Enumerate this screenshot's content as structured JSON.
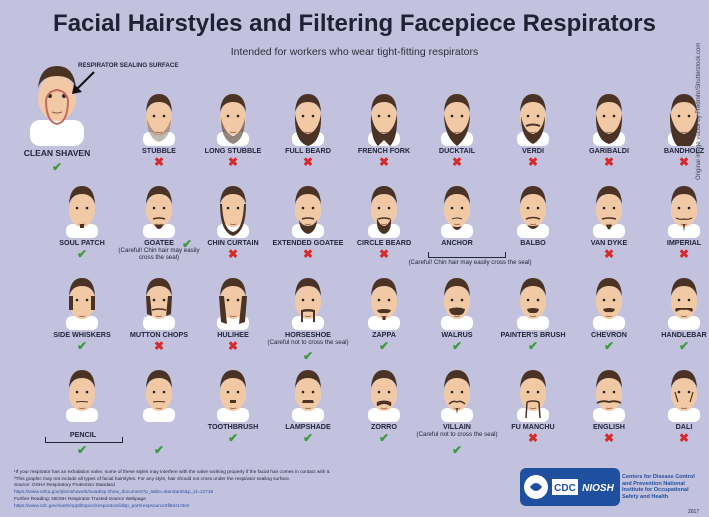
{
  "title": "Facial Hairstyles and Filtering Facepiece Respirators",
  "subtitle": "Intended for workers who wear tight-fitting respirators",
  "clean": {
    "label": "CLEAN SHAVEN",
    "sealing_label": "RESPIRATOR SEALING SURFACE",
    "ok": true
  },
  "styles": [
    {
      "id": "stubble",
      "label": "STUBBLE",
      "ok": false
    },
    {
      "id": "long-stubble",
      "label": "LONG STUBBLE",
      "ok": false
    },
    {
      "id": "full-beard",
      "label": "FULL BEARD",
      "ok": false
    },
    {
      "id": "french-fork",
      "label": "FRENCH FORK",
      "ok": false
    },
    {
      "id": "ducktail",
      "label": "DUCKTAIL",
      "ok": false
    },
    {
      "id": "verdi",
      "label": "VERDI",
      "ok": false
    },
    {
      "id": "garibaldi",
      "label": "GARIBALDI",
      "ok": false
    },
    {
      "id": "bandholz",
      "label": "BANDHOLZ",
      "ok": false
    },
    {
      "id": "soul-patch",
      "label": "SOUL PATCH",
      "ok": true
    },
    {
      "id": "goatee",
      "label": "GOATEE",
      "ok": true,
      "note": "(Careful! Chin hair may easily cross the seal)"
    },
    {
      "id": "chin-curtain",
      "label": "CHIN CURTAIN",
      "ok": false
    },
    {
      "id": "extended-goatee",
      "label": "EXTENDED GOATEE",
      "ok": false
    },
    {
      "id": "circle-beard",
      "label": "CIRCLE BEARD",
      "ok": false
    },
    {
      "id": "anchor",
      "label": "ANCHOR",
      "ok": null
    },
    {
      "id": "balbo",
      "label": "BALBO",
      "ok": null
    },
    {
      "id": "van-dyke",
      "label": "VAN DYKE",
      "ok": false
    },
    {
      "id": "imperial",
      "label": "IMPERIAL",
      "ok": false
    },
    {
      "id": "side-whiskers",
      "label": "SIDE WHISKERS",
      "ok": true
    },
    {
      "id": "mutton-chops",
      "label": "MUTTON CHOPS",
      "ok": false
    },
    {
      "id": "hulihee",
      "label": "HULIHEE",
      "ok": false
    },
    {
      "id": "horseshoe",
      "label": "HORSESHOE",
      "ok": null,
      "note": "(Careful not to cross the seal)"
    },
    {
      "id": "zappa",
      "label": "ZAPPA",
      "ok": true
    },
    {
      "id": "walrus",
      "label": "WALRUS",
      "ok": true
    },
    {
      "id": "painters-brush",
      "label": "PAINTER'S BRUSH",
      "ok": true
    },
    {
      "id": "chevron",
      "label": "CHEVRON",
      "ok": true
    },
    {
      "id": "handlebar",
      "label": "HANDLEBAR",
      "ok": true
    },
    {
      "id": "pencil-1",
      "label": "",
      "ok": true
    },
    {
      "id": "pencil-2",
      "label": "",
      "ok": true
    },
    {
      "id": "toothbrush",
      "label": "TOOTHBRUSH",
      "ok": true
    },
    {
      "id": "lampshade",
      "label": "LAMPSHADE",
      "ok": true
    },
    {
      "id": "zorro",
      "label": "ZORRO",
      "ok": true
    },
    {
      "id": "villain",
      "label": "VILLAIN",
      "ok": null,
      "note": "(Careful not to cross the seal)"
    },
    {
      "id": "fu-manchu",
      "label": "FU MANCHU",
      "ok": false
    },
    {
      "id": "english",
      "label": "ENGLISH",
      "ok": false
    },
    {
      "id": "dali",
      "label": "DALI",
      "ok": false
    }
  ],
  "pencil_label": "PENCIL",
  "anchor_balbo_note": "(Careful! Chin hair may easily cross the seal)",
  "footer": {
    "line1": "¹If your respirator has an exhalation valve, some of these styles may interfere with the valve working properly if the facial hair comes in contact with it.",
    "line2": "²This graphic may not include all types of facial hairstyles. For any style, hair should not cross under the respirator sealing surface.",
    "line3": "Source: OSHA Respiratory Protection Standard",
    "line4": "https://www.osha.gov/pls/oshaweb/owadisp.show_document?p_table=standards&p_id=12716",
    "line5": "Further Reading: NIOSH Respirator Trusted-Source Webpage",
    "line6": "https://www.cdc.gov/niosh/npptl/topics/respirators/disp_part/respsource3fittest.html"
  },
  "credit": "Original image vector by Fredrohr/Shutterstock.com",
  "agency": {
    "cdc": "CDC",
    "niosh": "NIOSH",
    "text": "Centers for Disease Control and Prevention National Institute for Occupational Safety and Health"
  },
  "year": "2017",
  "colors": {
    "background": "#c2c2df",
    "ok": "#3b9a3b",
    "no": "#d62b2b",
    "hair": "#4a3325",
    "skin": "#f2c9a5",
    "shirt": "#ffffff",
    "agency": "#1f4f9f"
  }
}
